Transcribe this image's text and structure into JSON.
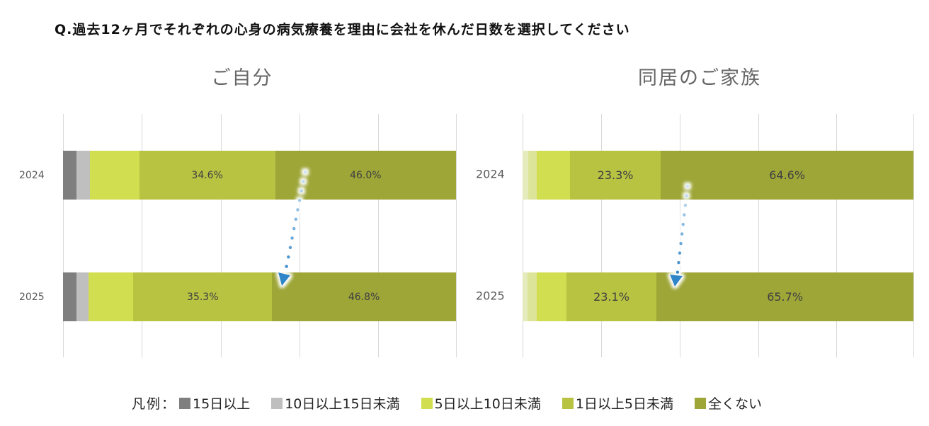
{
  "title": "Q.過去12ヶ月でそれぞれの心身の病気療養を理由に会社を休んだ日数を選択してください",
  "legend": {
    "lead": "凡例：",
    "items": [
      {
        "label": "15日以上",
        "color": "#7f7f7f"
      },
      {
        "label": "10日以上15日未満",
        "color": "#bfbfbf"
      },
      {
        "label": "5日以上10日未満",
        "color": "#d1de4f"
      },
      {
        "label": "1日以上5日未満",
        "color": "#b8c342"
      },
      {
        "label": "全くない",
        "color": "#9ea638"
      }
    ]
  },
  "chart_data": [
    {
      "type": "bar",
      "orientation": "horizontal-stacked-100",
      "title": "ご自分",
      "categories": [
        "2024",
        "2025"
      ],
      "series": [
        {
          "name": "15日以上",
          "color": "#7f7f7f",
          "values": [
            3.5,
            3.4
          ]
        },
        {
          "name": "10日以上15日未満",
          "color": "#bfbfbf",
          "values": [
            3.4,
            3.1
          ]
        },
        {
          "name": "5日以上10日未満",
          "color": "#d1de4f",
          "values": [
            12.5,
            11.4
          ]
        },
        {
          "name": "1日以上5日未満",
          "color": "#b8c342",
          "values": [
            34.6,
            35.3
          ],
          "labels": [
            "34.6%",
            "35.3%"
          ]
        },
        {
          "name": "全くない",
          "color": "#9ea638",
          "values": [
            46.0,
            46.8
          ],
          "labels": [
            "46.0%",
            "46.8%"
          ]
        }
      ],
      "xlim": [
        0,
        100
      ],
      "grid": true,
      "annotations": [
        {
          "type": "dotted-arrow",
          "from": "2024 全くない boundary",
          "to": "2025 全くない boundary",
          "color": "#2e86c9"
        }
      ]
    },
    {
      "type": "bar",
      "orientation": "horizontal-stacked-100",
      "title": "同居のご家族",
      "categories": [
        "2024",
        "2025"
      ],
      "series": [
        {
          "name": "15日以上",
          "color": "#e6ebbd",
          "values": [
            1.5,
            1.2
          ]
        },
        {
          "name": "10日以上15日未満",
          "color": "#dce49a",
          "values": [
            2.1,
            2.4
          ]
        },
        {
          "name": "5日以上10日未満",
          "color": "#d1de4f",
          "values": [
            8.5,
            7.6
          ]
        },
        {
          "name": "1日以上5日未満",
          "color": "#b8c342",
          "values": [
            23.3,
            23.1
          ],
          "labels": [
            "23.3%",
            "23.1%"
          ]
        },
        {
          "name": "全くない",
          "color": "#9ea638",
          "values": [
            64.6,
            65.7
          ],
          "labels": [
            "64.6%",
            "65.7%"
          ]
        }
      ],
      "xlim": [
        0,
        100
      ],
      "grid": true,
      "annotations": [
        {
          "type": "dotted-arrow",
          "from": "2024 全くない boundary",
          "to": "2025 全くない boundary",
          "color": "#2e86c9"
        }
      ]
    }
  ]
}
